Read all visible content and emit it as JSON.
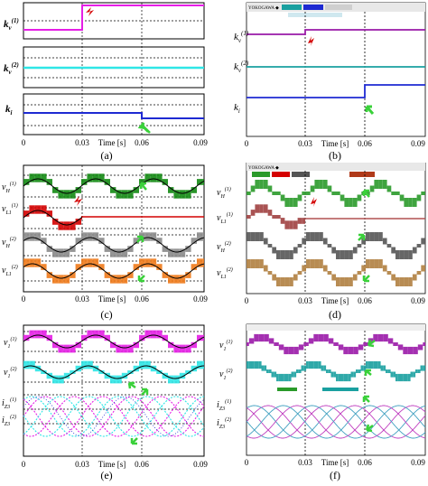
{
  "panels": {
    "a": {
      "caption": "(a)",
      "row_labels": {
        "kv1": {
          "base": "k",
          "sub": "v",
          "sup": "(1)"
        },
        "kv2": {
          "base": "k",
          "sub": "v",
          "sup": "(2)"
        },
        "ki": {
          "base": "k",
          "sub": "i",
          "sup": ""
        }
      },
      "x_ticks": [
        "0",
        "0.03",
        "0.06",
        "0.09"
      ],
      "x_label": "Time [s]"
    },
    "b": {
      "caption": "(b)",
      "row_labels": {
        "kv1": {
          "base": "k",
          "sub": "v",
          "sup": "(1)"
        },
        "kv2": {
          "base": "k",
          "sub": "v",
          "sup": "(2)"
        },
        "ki": {
          "base": "k",
          "sub": "i",
          "sup": ""
        }
      },
      "x_ticks": [
        "0",
        "0.03",
        "0.06",
        "0.09"
      ],
      "x_label": "Time [s]",
      "scope_brand": "YOKOGAWA ◆"
    },
    "c": {
      "caption": "(c)",
      "row_labels": {
        "vH1": {
          "base": "v",
          "sub": "H",
          "sup": "(1)"
        },
        "vL1": {
          "base": "v",
          "sub": "L1",
          "sup": "(1)"
        },
        "vH2": {
          "base": "v",
          "sub": "H",
          "sup": "(2)"
        },
        "vL2": {
          "base": "v",
          "sub": "L1",
          "sup": "(2)"
        }
      },
      "x_ticks": [
        "0",
        "0.03",
        "0.06",
        "0.09"
      ],
      "x_label": "Time [s]"
    },
    "d": {
      "caption": "(d)",
      "row_labels": {
        "vH1": {
          "base": "v",
          "sub": "H",
          "sup": "(1)"
        },
        "vL1": {
          "base": "v",
          "sub": "L1",
          "sup": "(1)"
        },
        "vH2": {
          "base": "v",
          "sub": "H",
          "sup": "(2)"
        },
        "vL2": {
          "base": "v",
          "sub": "L1",
          "sup": "(2)"
        }
      },
      "x_ticks": [
        "0",
        "0.03",
        "0.06",
        "0.09"
      ],
      "x_label": "Time [s]",
      "scope_brand": "YOKOGAWA ◆"
    },
    "e": {
      "caption": "(e)",
      "row_labels": {
        "v1": {
          "base": "v",
          "sub": "1",
          "sup": "(1)"
        },
        "v2": {
          "base": "v",
          "sub": "1",
          "sup": "(2)"
        },
        "i1": {
          "base": "i",
          "sub": "Z3",
          "sup": "(1)"
        },
        "i2": {
          "base": "i",
          "sub": "Z3",
          "sup": "(2)"
        }
      },
      "x_ticks": [
        "0",
        "0.03",
        "0.06",
        "0.09"
      ],
      "x_label": "Time [s]"
    },
    "f": {
      "caption": "(f)",
      "row_labels": {
        "v1": {
          "base": "v",
          "sub": "1",
          "sup": "(1)"
        },
        "v2": {
          "base": "v",
          "sub": "1",
          "sup": "(2)"
        },
        "i1": {
          "base": "i",
          "sub": "Z3",
          "sup": "(1)"
        },
        "i2": {
          "base": "i",
          "sub": "Z3",
          "sup": "(2)"
        }
      },
      "x_ticks": [
        "0",
        "0.03",
        "0.06",
        "0.09"
      ],
      "x_label": "Time [s]"
    }
  },
  "colors": {
    "magenta": "#e61ee6",
    "cyan": "#2ee6e6",
    "blue": "#1e2ad2",
    "green": "#138a13",
    "red": "#d40000",
    "gray": "#8a8a8a",
    "orange": "#f07a1a",
    "scope_purple": "#9a1aa8",
    "scope_teal": "#1aa0a0",
    "scope_green": "#2a9a2a",
    "scope_brown": "#b08040",
    "arrow_green": "#3ad13a"
  }
}
